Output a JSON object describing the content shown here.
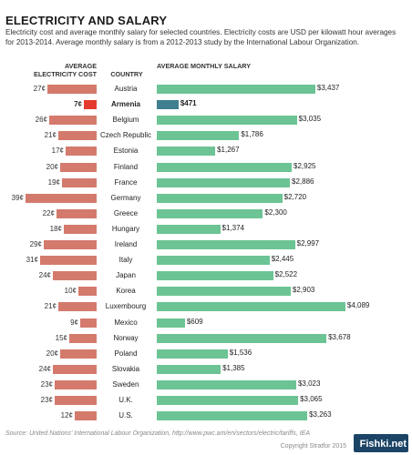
{
  "title": "ELECTRICITY AND SALARY",
  "subtitle": "Electricity cost and average monthly salary for selected countries. Electricity costs are USD per kilowatt hour averages for 2013-2014. Average monthly salary is from a 2012-2013 study by the International Labour Organization.",
  "source": "Source: United Nations' International Labour Organization, http://www.pwc.am/en/sectors/electric/tariffs, IEA",
  "copyright": "Copyright Stratfor 2015",
  "watermark": "Fishki.net",
  "colors": {
    "cost": "#d47a6d",
    "cost_highlight": "#e53b2f",
    "salary": "#6cc494",
    "salary_highlight": "#3f7f8f"
  },
  "chart_data": {
    "type": "bar",
    "column_headers": {
      "cost": "AVERAGE ELECTRICITY COST",
      "country": "COUNTRY",
      "salary": "AVERAGE MONTHLY SALARY"
    },
    "highlight": "Armenia",
    "categories": [
      "Austria",
      "Armenia",
      "Belgium",
      "Czech Republic",
      "Estonia",
      "Finland",
      "France",
      "Germany",
      "Greece",
      "Hungary",
      "Ireland",
      "Italy",
      "Japan",
      "Korea",
      "Luxembourg",
      "Mexico",
      "Norway",
      "Poland",
      "Slovakia",
      "Sweden",
      "U.K.",
      "U.S."
    ],
    "series": [
      {
        "name": "AVERAGE ELECTRICITY COST",
        "values": [
          27,
          7,
          26,
          21,
          17,
          20,
          19,
          39,
          22,
          18,
          29,
          31,
          24,
          10,
          21,
          9,
          15,
          20,
          24,
          23,
          23,
          12
        ],
        "labels": [
          "27¢",
          "7¢",
          "26¢",
          "21¢",
          "17¢",
          "20¢",
          "19¢",
          "39¢",
          "22¢",
          "18¢",
          "29¢",
          "31¢",
          "24¢",
          "10¢",
          "21¢",
          "9¢",
          "15¢",
          "20¢",
          "24¢",
          "23¢",
          "23¢",
          "12¢"
        ]
      },
      {
        "name": "AVERAGE MONTHLY SALARY",
        "values": [
          3437,
          471,
          3035,
          1786,
          1267,
          2925,
          2886,
          2720,
          2300,
          1374,
          2997,
          2445,
          2522,
          2903,
          4089,
          609,
          3678,
          1536,
          1385,
          3023,
          3065,
          3263
        ],
        "labels": [
          "$3,437",
          "$471",
          "$3,035",
          "$1,786",
          "$1,267",
          "$2,925",
          "$2,886",
          "$2,720",
          "$2,300",
          "$1,374",
          "$2,997",
          "$2,445",
          "$2,522",
          "$2,903",
          "$4,089",
          "$609",
          "$3,678",
          "$1,536",
          "$1,385",
          "$3,023",
          "$3,065",
          "$3,263"
        ]
      }
    ]
  }
}
